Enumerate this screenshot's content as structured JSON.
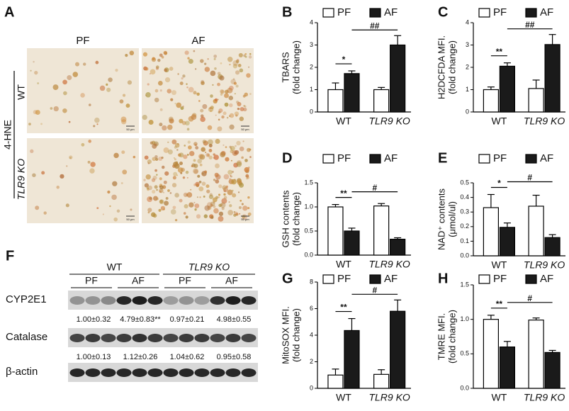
{
  "chart_data": [
    {
      "type": "bar",
      "panel": "B",
      "ylabel": [
        "TBARS",
        "(fold change)"
      ],
      "categories": [
        "WT",
        "TLR9 KO"
      ],
      "series": [
        {
          "name": "PF",
          "color": "#ffffff",
          "values": [
            1.0,
            1.0
          ],
          "errors": [
            0.3,
            0.1
          ]
        },
        {
          "name": "AF",
          "color": "#1a1a1a",
          "values": [
            1.72,
            3.0
          ],
          "errors": [
            0.12,
            0.42
          ]
        }
      ],
      "annotations": [
        "*",
        "##"
      ],
      "ylim": [
        0,
        4
      ],
      "yticks": [
        0,
        1,
        2,
        3,
        4
      ]
    },
    {
      "type": "bar",
      "panel": "C",
      "ylabel": [
        "H2DCFDA MFI.",
        "(fold change)"
      ],
      "categories": [
        "WT",
        "TLR9 KO"
      ],
      "series": [
        {
          "name": "PF",
          "color": "#ffffff",
          "values": [
            1.0,
            1.05
          ],
          "errors": [
            0.12,
            0.38
          ]
        },
        {
          "name": "AF",
          "color": "#1a1a1a",
          "values": [
            2.05,
            3.02
          ],
          "errors": [
            0.15,
            0.45
          ]
        }
      ],
      "annotations": [
        "**",
        "##"
      ],
      "ylim": [
        0,
        4
      ],
      "yticks": [
        0,
        1,
        2,
        3,
        4
      ]
    },
    {
      "type": "bar",
      "panel": "D",
      "ylabel": [
        "GSH contents",
        "(fold change)"
      ],
      "categories": [
        "WT",
        "TLR9 KO"
      ],
      "series": [
        {
          "name": "PF",
          "color": "#ffffff",
          "values": [
            1.0,
            1.02
          ],
          "errors": [
            0.05,
            0.05
          ]
        },
        {
          "name": "AF",
          "color": "#1a1a1a",
          "values": [
            0.5,
            0.33
          ],
          "errors": [
            0.06,
            0.03
          ]
        }
      ],
      "annotations": [
        "**",
        "#"
      ],
      "ylim": [
        0,
        1.5
      ],
      "yticks": [
        {
          "value": 0,
          "label": "0.0"
        },
        0.5,
        {
          "value": 1,
          "label": "1.0"
        },
        1.5
      ]
    },
    {
      "type": "bar",
      "panel": "E",
      "ylabel": [
        "NAD⁺ contents",
        "(μmol/ul)"
      ],
      "categories": [
        "WT",
        "TLR9 KO"
      ],
      "series": [
        {
          "name": "PF",
          "color": "#ffffff",
          "values": [
            0.33,
            0.34
          ],
          "errors": [
            0.09,
            0.075
          ]
        },
        {
          "name": "AF",
          "color": "#1a1a1a",
          "values": [
            0.195,
            0.125
          ],
          "errors": [
            0.03,
            0.02
          ]
        }
      ],
      "annotations": [
        "*",
        "#"
      ],
      "ylim": [
        0,
        0.5
      ],
      "yticks": [
        {
          "value": 0,
          "label": "0.0"
        },
        0.1,
        0.2,
        0.3,
        0.4,
        0.5
      ]
    },
    {
      "type": "bar",
      "panel": "G",
      "ylabel": [
        "MitoSOX MFI.",
        "(fold change)"
      ],
      "categories": [
        "WT",
        "TLR9 KO"
      ],
      "series": [
        {
          "name": "PF",
          "color": "#ffffff",
          "values": [
            1.0,
            1.05
          ],
          "errors": [
            0.45,
            0.35
          ]
        },
        {
          "name": "AF",
          "color": "#1a1a1a",
          "values": [
            4.35,
            5.8
          ],
          "errors": [
            0.9,
            0.85
          ]
        }
      ],
      "annotations": [
        "**",
        "#"
      ],
      "ylim": [
        0,
        8
      ],
      "yticks": [
        0,
        2,
        4,
        6,
        8
      ]
    },
    {
      "type": "bar",
      "panel": "H",
      "ylabel": [
        "TMRE MFI.",
        "(fold change)"
      ],
      "categories": [
        "WT",
        "TLR9 KO"
      ],
      "series": [
        {
          "name": "PF",
          "color": "#ffffff",
          "values": [
            1.0,
            0.99
          ],
          "errors": [
            0.06,
            0.03
          ]
        },
        {
          "name": "AF",
          "color": "#1a1a1a",
          "values": [
            0.6,
            0.52
          ],
          "errors": [
            0.08,
            0.03
          ]
        }
      ],
      "annotations": [
        "**",
        "#"
      ],
      "ylim": [
        0,
        1.5
      ],
      "yticks": [
        {
          "value": 0,
          "label": "0.0"
        },
        0.5,
        {
          "value": 1,
          "label": "1.0"
        },
        1.5
      ]
    }
  ],
  "histology": {
    "panel": "A",
    "stain": "4-HNE",
    "columns": [
      "PF",
      "AF"
    ],
    "rows": [
      "WT",
      "TLR9 KO"
    ],
    "scale": "50 μm"
  },
  "blot": {
    "panel": "F",
    "groups": [
      "WT",
      "TLR9 KO"
    ],
    "lanes": [
      "PF",
      "AF",
      "PF",
      "AF"
    ],
    "rows": [
      {
        "name": "CYP2E1",
        "quant": [
          "1.00±0.32",
          "4.79±0.83**",
          "0.97±0.21",
          "4.98±0.55"
        ]
      },
      {
        "name": "Catalase",
        "quant": [
          "1.00±0.13",
          "1.12±0.26",
          "1.04±0.62",
          "0.95±0.58"
        ]
      },
      {
        "name": "β-actin"
      }
    ]
  }
}
